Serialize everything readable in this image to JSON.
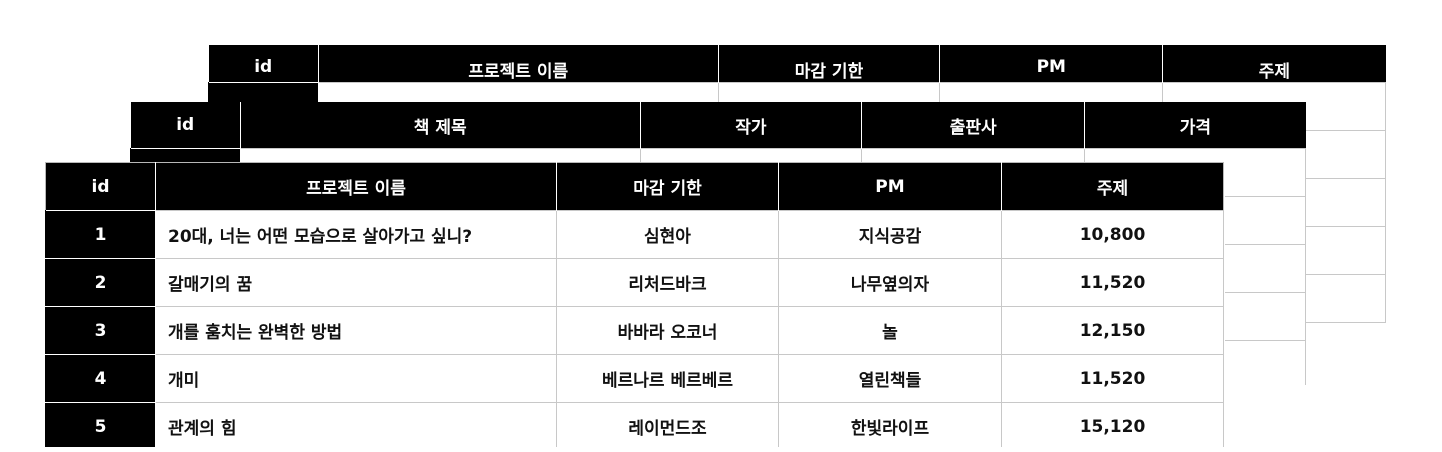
{
  "tables": {
    "back": {
      "headers": [
        "id",
        "프로젝트 이름",
        "마감 기한",
        "PM",
        "주제"
      ],
      "row_count": 5
    },
    "middle": {
      "headers": [
        "id",
        "책 제목",
        "작가",
        "출판사",
        "가격"
      ],
      "row_count": 5
    },
    "front": {
      "headers": [
        "id",
        "프로젝트 이름",
        "마감 기한",
        "PM",
        "주제"
      ],
      "rows": [
        [
          "1",
          "20대, 너는 어떤 모습으로 살아가고 싶니?",
          "심현아",
          "지식공감",
          "10,800"
        ],
        [
          "2",
          "갈매기의 꿈",
          "리처드바크",
          "나무옆의자",
          "11,520"
        ],
        [
          "3",
          "개를 훔치는 완벽한 방법",
          "바바라 오코너",
          "놀",
          "12,150"
        ],
        [
          "4",
          "개미",
          "베르나르 베르베르",
          "열린책들",
          "11,520"
        ],
        [
          "5",
          "관계의 힘",
          "레이먼드조",
          "한빛라이프",
          "15,120"
        ]
      ]
    }
  }
}
